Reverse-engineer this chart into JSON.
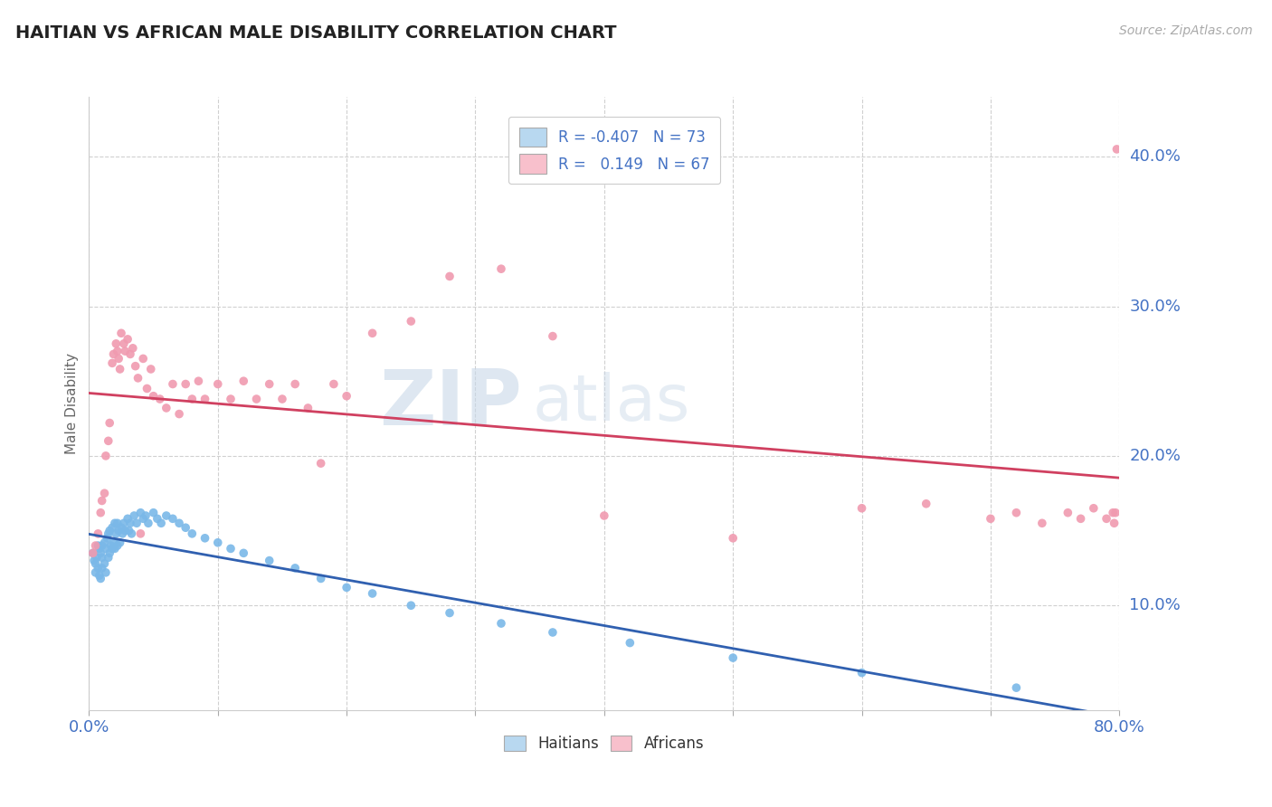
{
  "title": "HAITIAN VS AFRICAN MALE DISABILITY CORRELATION CHART",
  "source": "Source: ZipAtlas.com",
  "ylabel": "Male Disability",
  "xmin": 0.0,
  "xmax": 0.8,
  "ymin": 0.03,
  "ymax": 0.44,
  "yticks": [
    0.1,
    0.2,
    0.3,
    0.4
  ],
  "xtick_positions": [
    0.0,
    0.1,
    0.2,
    0.3,
    0.4,
    0.5,
    0.6,
    0.7,
    0.8
  ],
  "haitian_color": "#7ab8e8",
  "african_color": "#f09ab0",
  "haitian_line_color": "#3060b0",
  "african_line_color": "#d04060",
  "haitian_legend_color": "#b8d8f0",
  "african_legend_color": "#f8c0cc",
  "legend_label_1": "R = -0.407   N = 73",
  "legend_label_2": "R =   0.149   N = 67",
  "legend_text_color": "#4472c4",
  "bottom_label_1": "Haitians",
  "bottom_label_2": "Africans",
  "watermark_zip": "ZIP",
  "watermark_atlas": "atlas",
  "haitian_x": [
    0.003,
    0.004,
    0.005,
    0.005,
    0.006,
    0.007,
    0.007,
    0.008,
    0.008,
    0.009,
    0.009,
    0.01,
    0.01,
    0.01,
    0.012,
    0.012,
    0.013,
    0.013,
    0.014,
    0.015,
    0.015,
    0.016,
    0.016,
    0.017,
    0.018,
    0.018,
    0.019,
    0.02,
    0.02,
    0.021,
    0.022,
    0.022,
    0.023,
    0.024,
    0.025,
    0.026,
    0.027,
    0.028,
    0.03,
    0.031,
    0.032,
    0.033,
    0.035,
    0.037,
    0.04,
    0.042,
    0.044,
    0.046,
    0.05,
    0.053,
    0.056,
    0.06,
    0.065,
    0.07,
    0.075,
    0.08,
    0.09,
    0.1,
    0.11,
    0.12,
    0.14,
    0.16,
    0.18,
    0.2,
    0.22,
    0.25,
    0.28,
    0.32,
    0.36,
    0.42,
    0.5,
    0.6,
    0.72
  ],
  "haitian_y": [
    0.135,
    0.13,
    0.128,
    0.122,
    0.132,
    0.14,
    0.125,
    0.138,
    0.12,
    0.135,
    0.118,
    0.14,
    0.132,
    0.125,
    0.142,
    0.128,
    0.138,
    0.122,
    0.145,
    0.148,
    0.132,
    0.15,
    0.135,
    0.14,
    0.152,
    0.138,
    0.142,
    0.155,
    0.138,
    0.148,
    0.155,
    0.14,
    0.15,
    0.142,
    0.152,
    0.148,
    0.155,
    0.15,
    0.158,
    0.15,
    0.155,
    0.148,
    0.16,
    0.155,
    0.162,
    0.158,
    0.16,
    0.155,
    0.162,
    0.158,
    0.155,
    0.16,
    0.158,
    0.155,
    0.152,
    0.148,
    0.145,
    0.142,
    0.138,
    0.135,
    0.13,
    0.125,
    0.118,
    0.112,
    0.108,
    0.1,
    0.095,
    0.088,
    0.082,
    0.075,
    0.065,
    0.055,
    0.045
  ],
  "african_x": [
    0.003,
    0.005,
    0.007,
    0.009,
    0.01,
    0.012,
    0.013,
    0.015,
    0.016,
    0.018,
    0.019,
    0.021,
    0.022,
    0.023,
    0.024,
    0.025,
    0.027,
    0.028,
    0.03,
    0.032,
    0.034,
    0.036,
    0.038,
    0.04,
    0.042,
    0.045,
    0.048,
    0.05,
    0.055,
    0.06,
    0.065,
    0.07,
    0.075,
    0.08,
    0.085,
    0.09,
    0.1,
    0.11,
    0.12,
    0.13,
    0.14,
    0.15,
    0.16,
    0.17,
    0.18,
    0.19,
    0.2,
    0.22,
    0.25,
    0.28,
    0.32,
    0.36,
    0.4,
    0.5,
    0.6,
    0.65,
    0.7,
    0.72,
    0.74,
    0.76,
    0.77,
    0.78,
    0.79,
    0.795,
    0.796,
    0.797,
    0.798
  ],
  "african_y": [
    0.135,
    0.14,
    0.148,
    0.162,
    0.17,
    0.175,
    0.2,
    0.21,
    0.222,
    0.262,
    0.268,
    0.275,
    0.27,
    0.265,
    0.258,
    0.282,
    0.275,
    0.27,
    0.278,
    0.268,
    0.272,
    0.26,
    0.252,
    0.148,
    0.265,
    0.245,
    0.258,
    0.24,
    0.238,
    0.232,
    0.248,
    0.228,
    0.248,
    0.238,
    0.25,
    0.238,
    0.248,
    0.238,
    0.25,
    0.238,
    0.248,
    0.238,
    0.248,
    0.232,
    0.195,
    0.248,
    0.24,
    0.282,
    0.29,
    0.32,
    0.325,
    0.28,
    0.16,
    0.145,
    0.165,
    0.168,
    0.158,
    0.162,
    0.155,
    0.162,
    0.158,
    0.165,
    0.158,
    0.162,
    0.155,
    0.162,
    0.405
  ]
}
